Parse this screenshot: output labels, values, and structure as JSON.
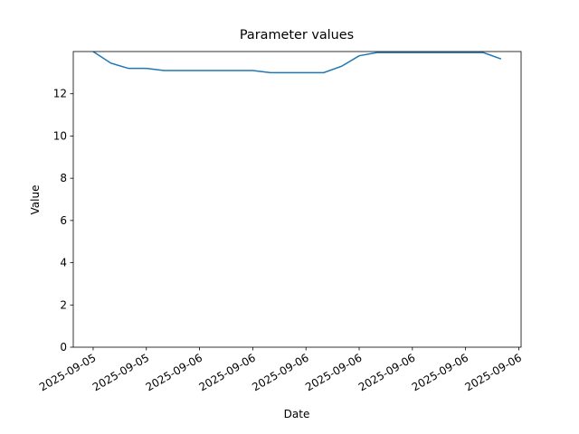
{
  "chart_data": {
    "type": "line",
    "title": "Parameter values",
    "x_label": "Date",
    "y_label": "Value",
    "x": [
      0,
      1,
      2,
      3,
      4,
      5,
      6,
      7,
      8,
      9,
      10,
      11,
      12,
      13,
      14,
      15,
      16,
      17,
      18,
      19,
      20,
      21,
      22,
      23
    ],
    "series": [
      {
        "name": "Value",
        "color": "#1f77b4",
        "values": [
          14.0,
          13.45,
          13.2,
          13.2,
          13.1,
          13.1,
          13.1,
          13.1,
          13.1,
          13.1,
          13.0,
          13.0,
          13.0,
          13.0,
          13.3,
          13.8,
          13.95,
          13.95,
          13.95,
          13.95,
          13.95,
          13.95,
          13.95,
          13.65
        ]
      }
    ],
    "xlim": [
      -1.12,
      24.13
    ],
    "xticks": [
      {
        "value": 0,
        "label": "2025-09-05"
      },
      {
        "value": 3,
        "label": "2025-09-05"
      },
      {
        "value": 6,
        "label": "2025-09-06"
      },
      {
        "value": 9,
        "label": "2025-09-06"
      },
      {
        "value": 12,
        "label": "2025-09-06"
      },
      {
        "value": 15,
        "label": "2025-09-06"
      },
      {
        "value": 18,
        "label": "2025-09-06"
      },
      {
        "value": 21,
        "label": "2025-09-06"
      },
      {
        "value": 24,
        "label": "2025-09-06"
      }
    ],
    "ylim": [
      0,
      14.0
    ],
    "yticks": [
      0,
      2,
      4,
      6,
      8,
      10,
      12
    ]
  }
}
